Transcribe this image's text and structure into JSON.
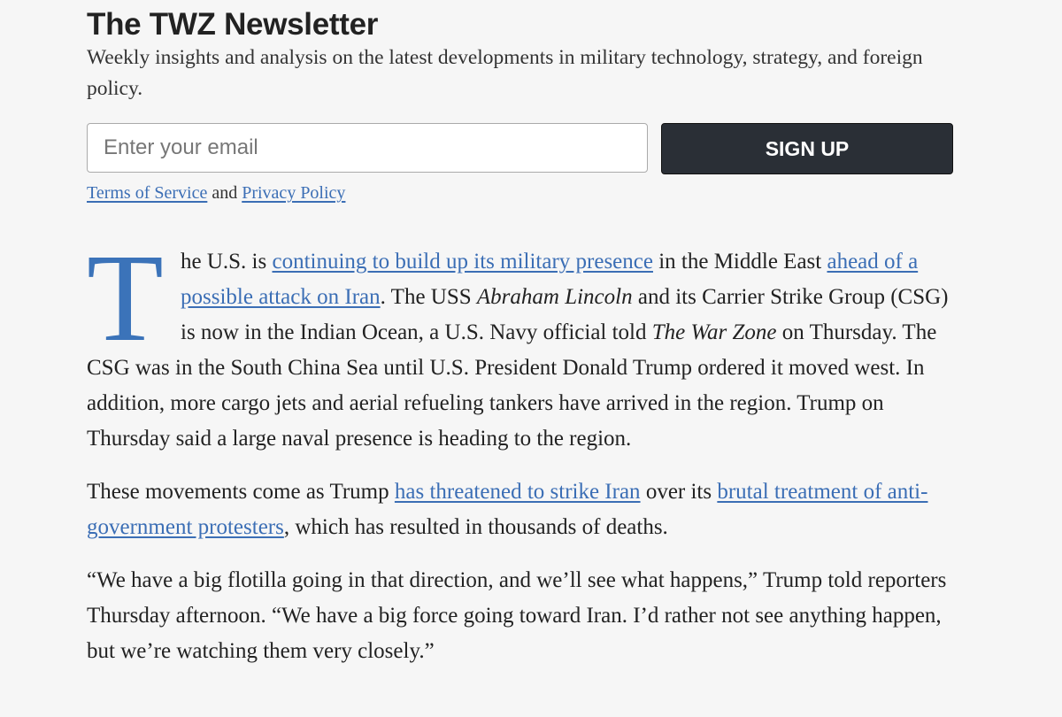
{
  "newsletter": {
    "title": "The TWZ Newsletter",
    "subtitle": "Weekly insights and analysis on the latest developments in military technology, strategy, and foreign policy.",
    "email_placeholder": "Enter your email",
    "signup_label": "SIGN UP",
    "terms_label": "Terms of Service",
    "and_label": " and ",
    "privacy_label": "Privacy Policy"
  },
  "article": {
    "dropcap": "T",
    "p1": [
      {
        "t": "text",
        "v": "he U.S. is "
      },
      {
        "t": "link",
        "v": "continuing to build up its military presence"
      },
      {
        "t": "text",
        "v": " in the Middle East "
      },
      {
        "t": "link",
        "v": "ahead of a possible attack on Iran"
      },
      {
        "t": "text",
        "v": ". The USS "
      },
      {
        "t": "em",
        "v": "Abraham Lincoln"
      },
      {
        "t": "text",
        "v": " and its Carrier Strike Group (CSG) is now in the Indian Ocean, a U.S. Navy official told "
      },
      {
        "t": "em",
        "v": "The War Zone"
      },
      {
        "t": "text",
        "v": " on Thursday. The CSG was in the South China Sea until U.S. President Donald Trump ordered it moved west. In addition, more cargo jets and aerial refueling tankers have arrived in the region. Trump on Thursday said a large naval presence is heading to the region."
      }
    ],
    "p2": [
      {
        "t": "text",
        "v": "These movements come as Trump "
      },
      {
        "t": "link",
        "v": "has threatened to strike Iran"
      },
      {
        "t": "text",
        "v": " over its "
      },
      {
        "t": "link",
        "v": "brutal treatment of anti-government protesters"
      },
      {
        "t": "text",
        "v": ", which has resulted in thousands of deaths."
      }
    ],
    "p3": [
      {
        "t": "text",
        "v": "“We have a big flotilla going in that direction, and we’ll see what happens,” Trump told reporters Thursday afternoon. “We have a big force going toward Iran. I’d rather not see anything happen, but we’re watching them very closely.”"
      }
    ]
  },
  "colors": {
    "link": "#3b6eb5",
    "dropcap": "#3b73b9",
    "button": "#2a2f36",
    "background": "#f6f6f6"
  }
}
